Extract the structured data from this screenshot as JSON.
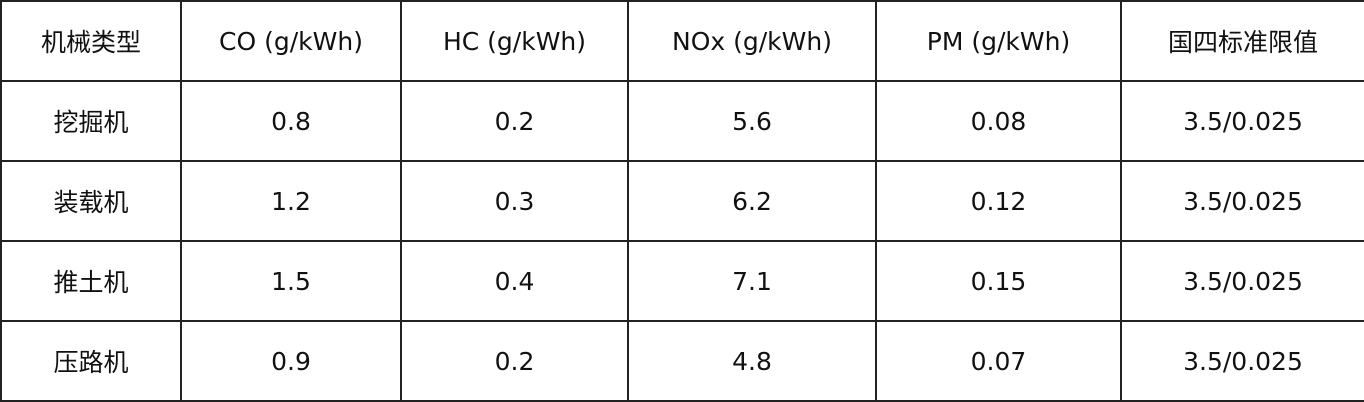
{
  "table": {
    "header": [
      "机械类型",
      "CO (g/kWh)",
      "HC (g/kWh)",
      "NOx (g/kWh)",
      "PM (g/kWh)",
      "国四标准限值"
    ],
    "rows": [
      [
        "挖掘机",
        "0.8",
        "0.2",
        "5.6",
        "0.08",
        "3.5/0.025"
      ],
      [
        "装载机",
        "1.2",
        "0.3",
        "6.2",
        "0.12",
        "3.5/0.025"
      ],
      [
        "推土机",
        "1.5",
        "0.4",
        "7.1",
        "0.15",
        "3.5/0.025"
      ],
      [
        "压路机",
        "0.9",
        "0.2",
        "4.8",
        "0.07",
        "3.5/0.025"
      ]
    ]
  }
}
